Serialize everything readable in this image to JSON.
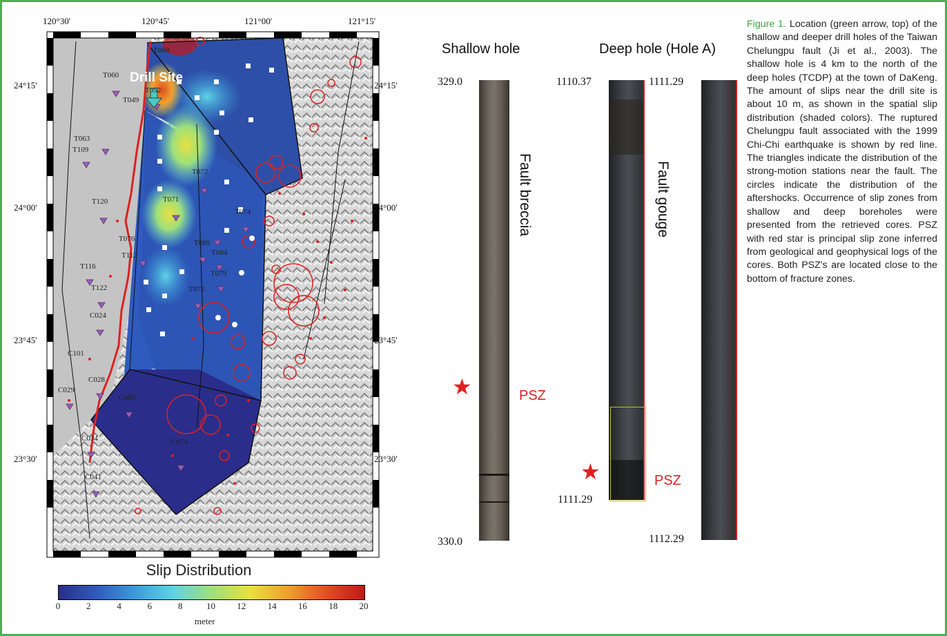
{
  "map": {
    "lon_ticks": [
      "120°30'",
      "120°45'",
      "121°00'",
      "121°15'"
    ],
    "lat_ticks": [
      "24°15'",
      "24°00'",
      "23°45'",
      "23°30'"
    ],
    "drill_site_label": "Drill Site",
    "stations": [
      "T068",
      "T060",
      "T052",
      "T049",
      "T063",
      "T109",
      "T120",
      "T072",
      "T071",
      "T074",
      "T076",
      "T089",
      "T084",
      "T112",
      "T116",
      "T079",
      "T078",
      "T122",
      "C024",
      "C101",
      "C028",
      "C029",
      "C080",
      "C034",
      "C074",
      "C041"
    ]
  },
  "colorbar": {
    "title": "Slip Distribution",
    "ticks": [
      "0",
      "2",
      "4",
      "6",
      "8",
      "10",
      "12",
      "14",
      "16",
      "18",
      "20"
    ],
    "unit": "meter",
    "colors": [
      "#2a2d8a",
      "#2f5bbf",
      "#3a9bdc",
      "#5fd3e6",
      "#9ee07a",
      "#e8e040",
      "#f0a030",
      "#e05020",
      "#c01818"
    ]
  },
  "shallow_core": {
    "title": "Shallow hole",
    "top_depth": "329.0",
    "bottom_depth": "330.0",
    "label": "Fault breccia",
    "psz": "PSZ"
  },
  "deep_core": {
    "title": "Deep hole (Hole A)",
    "col1_top": "1110.37",
    "col1_bottom": "1111.29",
    "col2_top": "1111.29",
    "col2_bottom": "1112.29",
    "label": "Fault gouge",
    "psz": "PSZ"
  },
  "caption": {
    "lead": "Figure 1.",
    "text": " Location (green arrow, top) of the shallow and deeper drill holes of the Taiwan Chelungpu fault (Ji et al., 2003). The shallow hole is 4 km to the north of the deep holes (TCDP) at the town of DaKeng. The amount of slips near the drill site is about 10 m, as shown in the spatial slip distribution (shaded colors). The ruptured Chelungpu fault associated with the 1999 Chi-Chi earthquake is shown by red line. The triangles indicate the distribution of the strong-motion stations near the fault. The circles indicate the distribution of the aftershocks. Occurrence of slip zones from shallow and deep boreholes were presented from the retrieved cores. PSZ with red star is principal slip zone inferred from geological and geophysical logs of the cores. Both PSZ's are located close to the bottom of fracture zones."
  }
}
